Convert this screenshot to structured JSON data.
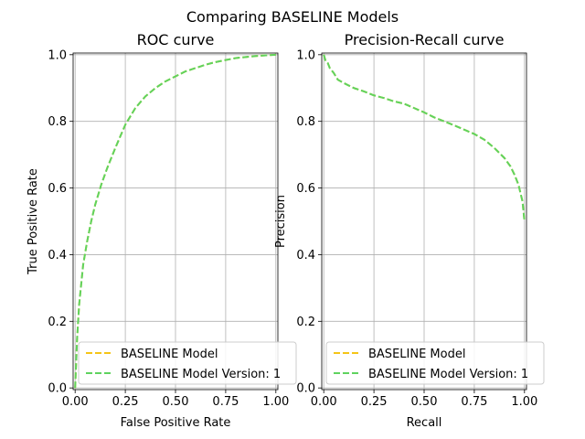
{
  "figure": {
    "suptitle": "Comparing BASELINE Models"
  },
  "chart_data": [
    {
      "type": "line",
      "title": "ROC curve",
      "xlabel": "False Positive Rate",
      "ylabel": "True Positive Rate",
      "xlim": [
        0,
        1
      ],
      "ylim": [
        0,
        1
      ],
      "xticks": [
        "0.00",
        "0.25",
        "0.50",
        "0.75",
        "1.00"
      ],
      "yticks": [
        "0.0",
        "0.2",
        "0.4",
        "0.6",
        "0.8",
        "1.0"
      ],
      "grid": true,
      "legend": "lower-right",
      "series": [
        {
          "name": "BASELINE Model",
          "color": "#f5c518",
          "x": [
            0,
            0.01,
            0.02,
            0.04,
            0.06,
            0.08,
            0.1,
            0.13,
            0.16,
            0.2,
            0.25,
            0.3,
            0.35,
            0.4,
            0.45,
            0.5,
            0.55,
            0.6,
            0.65,
            0.7,
            0.75,
            0.8,
            0.85,
            0.9,
            0.95,
            1.0
          ],
          "y": [
            0,
            0.15,
            0.25,
            0.37,
            0.44,
            0.5,
            0.55,
            0.61,
            0.66,
            0.72,
            0.79,
            0.84,
            0.875,
            0.9,
            0.92,
            0.935,
            0.95,
            0.96,
            0.97,
            0.978,
            0.984,
            0.99,
            0.993,
            0.996,
            0.998,
            1.0
          ]
        },
        {
          "name": "BASELINE Model Version: 1",
          "color": "#5fd35f",
          "x": [
            0,
            0.01,
            0.02,
            0.04,
            0.06,
            0.08,
            0.1,
            0.13,
            0.16,
            0.2,
            0.25,
            0.3,
            0.35,
            0.4,
            0.45,
            0.5,
            0.55,
            0.6,
            0.65,
            0.7,
            0.75,
            0.8,
            0.85,
            0.9,
            0.95,
            1.0
          ],
          "y": [
            0,
            0.15,
            0.25,
            0.37,
            0.44,
            0.5,
            0.55,
            0.61,
            0.66,
            0.72,
            0.79,
            0.84,
            0.875,
            0.9,
            0.92,
            0.935,
            0.95,
            0.96,
            0.97,
            0.978,
            0.984,
            0.99,
            0.993,
            0.996,
            0.998,
            1.0
          ]
        }
      ]
    },
    {
      "type": "line",
      "title": "Precision-Recall curve",
      "xlabel": "Recall",
      "ylabel": "Precision",
      "xlim": [
        0,
        1
      ],
      "ylim": [
        0,
        1
      ],
      "xticks": [
        "0.00",
        "0.25",
        "0.50",
        "0.75",
        "1.00"
      ],
      "yticks": [
        "0.0",
        "0.2",
        "0.4",
        "0.6",
        "0.8",
        "1.0"
      ],
      "grid": true,
      "legend": "lower-right",
      "series": [
        {
          "name": "BASELINE Model",
          "color": "#f5c518",
          "x": [
            0,
            0.005,
            0.01,
            0.02,
            0.03,
            0.05,
            0.07,
            0.1,
            0.15,
            0.2,
            0.25,
            0.3,
            0.35,
            0.4,
            0.45,
            0.5,
            0.55,
            0.6,
            0.65,
            0.7,
            0.75,
            0.8,
            0.85,
            0.9,
            0.93,
            0.95,
            0.97,
            0.99,
            1.0
          ],
          "y": [
            1.0,
            0.99,
            0.98,
            0.975,
            0.96,
            0.945,
            0.925,
            0.915,
            0.9,
            0.89,
            0.878,
            0.87,
            0.86,
            0.853,
            0.84,
            0.827,
            0.812,
            0.8,
            0.788,
            0.775,
            0.762,
            0.745,
            0.72,
            0.69,
            0.665,
            0.64,
            0.61,
            0.56,
            0.5
          ]
        },
        {
          "name": "BASELINE Model Version: 1",
          "color": "#5fd35f",
          "x": [
            0,
            0.005,
            0.01,
            0.02,
            0.03,
            0.05,
            0.07,
            0.1,
            0.15,
            0.2,
            0.25,
            0.3,
            0.35,
            0.4,
            0.45,
            0.5,
            0.55,
            0.6,
            0.65,
            0.7,
            0.75,
            0.8,
            0.85,
            0.9,
            0.93,
            0.95,
            0.97,
            0.99,
            1.0
          ],
          "y": [
            1.0,
            0.99,
            0.98,
            0.975,
            0.96,
            0.945,
            0.925,
            0.915,
            0.9,
            0.89,
            0.878,
            0.87,
            0.86,
            0.853,
            0.84,
            0.827,
            0.812,
            0.8,
            0.788,
            0.775,
            0.762,
            0.745,
            0.72,
            0.69,
            0.665,
            0.64,
            0.61,
            0.56,
            0.5
          ]
        }
      ]
    }
  ]
}
